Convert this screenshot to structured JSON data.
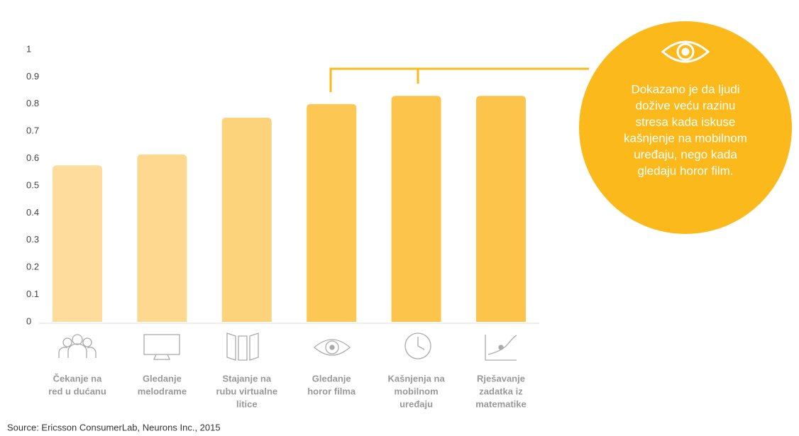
{
  "chart_data": {
    "type": "bar",
    "categories": [
      [
        "Čekanje na",
        "red u dućanu"
      ],
      [
        "Gledanje",
        "melodrame"
      ],
      [
        "Stajanje na",
        "rubu virtualne",
        "litice"
      ],
      [
        "Gledanje",
        "horor filma"
      ],
      [
        "Kašnjenja na",
        "mobilnom",
        "uređaju"
      ],
      [
        "Rješavanje",
        "zadatka iz",
        "matematike"
      ]
    ],
    "values": [
      0.575,
      0.615,
      0.75,
      0.8,
      0.83,
      0.83
    ],
    "colors": [
      "#fddc9c",
      "#fdd88e",
      "#fcd37a",
      "#fcc752",
      "#fcc44a",
      "#fcc44a"
    ],
    "ylim": [
      0,
      1
    ],
    "yticks": [
      0,
      0.1,
      0.2,
      0.3,
      0.4,
      0.5,
      0.6,
      0.7,
      0.8,
      0.9,
      1
    ],
    "annotation": [
      "Dokazano je da ljudi",
      "dožive veću razinu",
      "stresa kada iskuse",
      "kašnjenje na mobilnom",
      "uređaju, nego kada",
      "gledaju horor film."
    ],
    "annotation_color": "#fbb91b",
    "source": "Source: Ericsson ConsumerLab, Neurons Inc., 2015"
  }
}
